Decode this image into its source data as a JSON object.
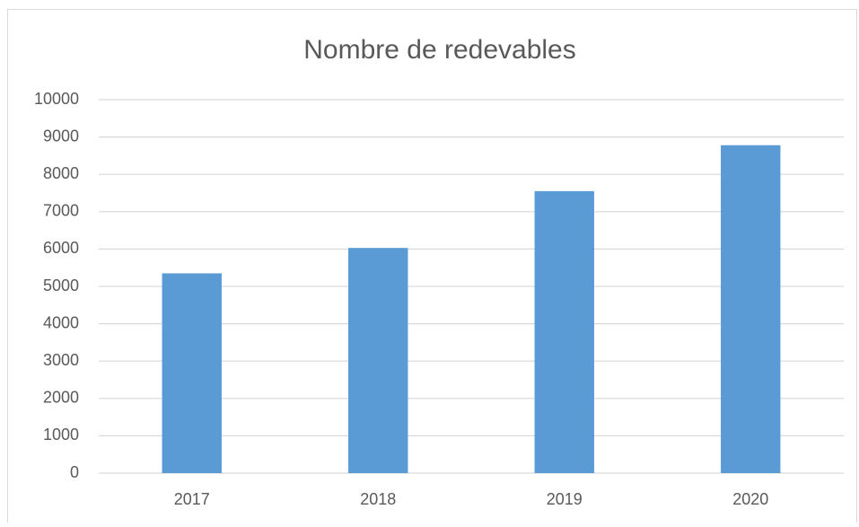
{
  "chart_data": {
    "type": "bar",
    "title": "Nombre de redevables",
    "categories": [
      "2017",
      "2018",
      "2019",
      "2020"
    ],
    "values": [
      5350,
      6030,
      7550,
      8780
    ],
    "color": "#5b9bd5",
    "ylim": [
      0,
      10000
    ],
    "yticks": [
      0,
      1000,
      2000,
      3000,
      4000,
      5000,
      6000,
      7000,
      8000,
      9000,
      10000
    ],
    "grid": true
  }
}
